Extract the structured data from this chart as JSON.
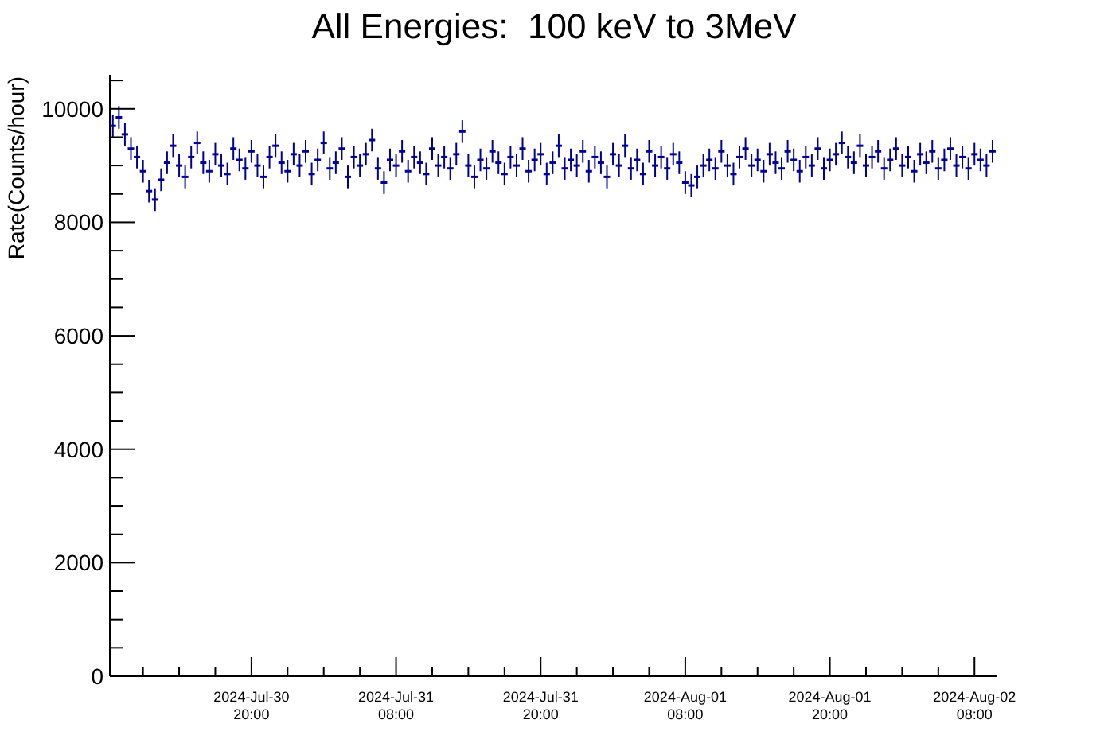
{
  "chart_data": {
    "type": "scatter",
    "title": "All Energies:  100 keV to 3MeV",
    "ylabel": "Rate(Counts/hour)",
    "x": [
      "2024-07-30T08:30",
      "2024-07-30T09:00",
      "2024-07-30T09:30",
      "2024-07-30T10:00",
      "2024-07-30T10:30",
      "2024-07-30T11:00",
      "2024-07-30T11:30",
      "2024-07-30T12:00",
      "2024-07-30T12:30",
      "2024-07-30T13:00",
      "2024-07-30T13:30",
      "2024-07-30T14:00",
      "2024-07-30T14:30",
      "2024-07-30T15:00",
      "2024-07-30T15:30",
      "2024-07-30T16:00",
      "2024-07-30T16:30",
      "2024-07-30T17:00",
      "2024-07-30T17:30",
      "2024-07-30T18:00",
      "2024-07-30T18:30",
      "2024-07-30T19:00",
      "2024-07-30T19:30",
      "2024-07-30T20:00",
      "2024-07-30T20:30",
      "2024-07-30T21:00",
      "2024-07-30T21:30",
      "2024-07-30T22:00",
      "2024-07-30T22:30",
      "2024-07-30T23:00",
      "2024-07-30T23:30",
      "2024-07-31T00:00",
      "2024-07-31T00:30",
      "2024-07-31T01:00",
      "2024-07-31T01:30",
      "2024-07-31T02:00",
      "2024-07-31T02:30",
      "2024-07-31T03:00",
      "2024-07-31T03:30",
      "2024-07-31T04:00",
      "2024-07-31T04:30",
      "2024-07-31T05:00",
      "2024-07-31T05:30",
      "2024-07-31T06:00",
      "2024-07-31T06:30",
      "2024-07-31T07:00",
      "2024-07-31T07:30",
      "2024-07-31T08:00",
      "2024-07-31T08:30",
      "2024-07-31T09:00",
      "2024-07-31T09:30",
      "2024-07-31T10:00",
      "2024-07-31T10:30",
      "2024-07-31T11:00",
      "2024-07-31T11:30",
      "2024-07-31T12:00",
      "2024-07-31T12:30",
      "2024-07-31T13:00",
      "2024-07-31T13:30",
      "2024-07-31T14:00",
      "2024-07-31T14:30",
      "2024-07-31T15:00",
      "2024-07-31T15:30",
      "2024-07-31T16:00",
      "2024-07-31T16:30",
      "2024-07-31T17:00",
      "2024-07-31T17:30",
      "2024-07-31T18:00",
      "2024-07-31T18:30",
      "2024-07-31T19:00",
      "2024-07-31T19:30",
      "2024-07-31T20:00",
      "2024-07-31T20:30",
      "2024-07-31T21:00",
      "2024-07-31T21:30",
      "2024-07-31T22:00",
      "2024-07-31T22:30",
      "2024-07-31T23:00",
      "2024-07-31T23:30",
      "2024-08-01T00:00",
      "2024-08-01T00:30",
      "2024-08-01T01:00",
      "2024-08-01T01:30",
      "2024-08-01T02:00",
      "2024-08-01T02:30",
      "2024-08-01T03:00",
      "2024-08-01T03:30",
      "2024-08-01T04:00",
      "2024-08-01T04:30",
      "2024-08-01T05:00",
      "2024-08-01T05:30",
      "2024-08-01T06:00",
      "2024-08-01T06:30",
      "2024-08-01T07:00",
      "2024-08-01T07:30",
      "2024-08-01T08:00",
      "2024-08-01T08:30",
      "2024-08-01T09:00",
      "2024-08-01T09:30",
      "2024-08-01T10:00",
      "2024-08-01T10:30",
      "2024-08-01T11:00",
      "2024-08-01T11:30",
      "2024-08-01T12:00",
      "2024-08-01T12:30",
      "2024-08-01T13:00",
      "2024-08-01T13:30",
      "2024-08-01T14:00",
      "2024-08-01T14:30",
      "2024-08-01T15:00",
      "2024-08-01T15:30",
      "2024-08-01T16:00",
      "2024-08-01T16:30",
      "2024-08-01T17:00",
      "2024-08-01T17:30",
      "2024-08-01T18:00",
      "2024-08-01T18:30",
      "2024-08-01T19:00",
      "2024-08-01T19:30",
      "2024-08-01T20:00",
      "2024-08-01T20:30",
      "2024-08-01T21:00",
      "2024-08-01T21:30",
      "2024-08-01T22:00",
      "2024-08-01T22:30",
      "2024-08-01T23:00",
      "2024-08-01T23:30",
      "2024-08-02T00:00",
      "2024-08-02T00:30",
      "2024-08-02T01:00",
      "2024-08-02T01:30",
      "2024-08-02T02:00",
      "2024-08-02T02:30",
      "2024-08-02T03:00",
      "2024-08-02T03:30",
      "2024-08-02T04:00",
      "2024-08-02T04:30",
      "2024-08-02T05:00",
      "2024-08-02T05:30",
      "2024-08-02T06:00",
      "2024-08-02T06:30",
      "2024-08-02T07:00",
      "2024-08-02T07:30",
      "2024-08-02T08:00",
      "2024-08-02T08:30",
      "2024-08-02T09:00",
      "2024-08-02T09:30"
    ],
    "series": [
      {
        "color": "#000099",
        "values": [
          9700,
          9850,
          9550,
          9300,
          9150,
          8900,
          8550,
          8400,
          8750,
          9050,
          9350,
          9000,
          8800,
          9150,
          9400,
          9050,
          8900,
          9200,
          9000,
          8850,
          9300,
          9100,
          8950,
          9250,
          9000,
          8800,
          9150,
          9350,
          9050,
          8900,
          9200,
          9000,
          9250,
          8850,
          9100,
          9400,
          8950,
          9050,
          9300,
          8800,
          9150,
          9000,
          9200,
          9450,
          8950,
          8700,
          9100,
          9000,
          9250,
          8900,
          9150,
          9050,
          8850,
          9300,
          9000,
          9150,
          8950,
          9200,
          9600,
          9000,
          8800,
          9100,
          8950,
          9250,
          9050,
          8850,
          9150,
          9000,
          9300,
          8900,
          9100,
          9200,
          8850,
          9050,
          9350,
          8950,
          9100,
          9000,
          9250,
          8900,
          9150,
          9050,
          8800,
          9200,
          9000,
          9350,
          8950,
          9100,
          8850,
          9250,
          9000,
          9150,
          8950,
          9200,
          9050,
          8700,
          8650,
          8800,
          9000,
          9100,
          8950,
          9250,
          9000,
          8850,
          9150,
          9300,
          9000,
          9100,
          8900,
          9200,
          9050,
          8950,
          9250,
          9100,
          8900,
          9150,
          9000,
          9300,
          8950,
          9100,
          9200,
          9400,
          9150,
          9050,
          9350,
          9000,
          9150,
          9250,
          8950,
          9100,
          9300,
          9000,
          9150,
          8900,
          9200,
          9050,
          9250,
          8950,
          9100,
          9300,
          9000,
          9150,
          8950,
          9200,
          9100,
          9000,
          9250
        ],
        "errors": [
          200,
          200,
          200,
          200,
          200,
          200,
          200,
          200,
          200,
          200,
          200,
          200,
          200,
          200,
          200,
          200,
          200,
          200,
          200,
          200,
          200,
          200,
          200,
          200,
          200,
          200,
          200,
          200,
          200,
          200,
          200,
          200,
          200,
          200,
          200,
          200,
          200,
          200,
          200,
          200,
          200,
          200,
          200,
          200,
          200,
          200,
          200,
          200,
          200,
          200,
          200,
          200,
          200,
          200,
          200,
          200,
          200,
          200,
          200,
          200,
          200,
          200,
          200,
          200,
          200,
          200,
          200,
          200,
          200,
          200,
          200,
          200,
          200,
          200,
          200,
          200,
          200,
          200,
          200,
          200,
          200,
          200,
          200,
          200,
          200,
          200,
          200,
          200,
          200,
          200,
          200,
          200,
          200,
          200,
          200,
          200,
          200,
          200,
          200,
          200,
          200,
          200,
          200,
          200,
          200,
          200,
          200,
          200,
          200,
          200,
          200,
          200,
          200,
          200,
          200,
          200,
          200,
          200,
          200,
          200,
          200,
          200,
          200,
          200,
          200,
          200,
          200,
          200,
          200,
          200,
          200,
          200,
          200,
          200,
          200,
          200,
          200,
          200,
          200,
          200,
          200,
          200,
          200,
          200,
          200,
          200,
          200
        ]
      }
    ],
    "xlim": [
      "2024-07-30T08:15",
      "2024-08-02T09:50"
    ],
    "xticks": [
      {
        "value": "2024-07-30T11:00",
        "label": null
      },
      {
        "value": "2024-07-30T14:00",
        "label": null
      },
      {
        "value": "2024-07-30T17:00",
        "label": null
      },
      {
        "value": "2024-07-30T20:00",
        "label": "2024-Jul-30\n20:00"
      },
      {
        "value": "2024-07-30T23:00",
        "label": null
      },
      {
        "value": "2024-07-31T02:00",
        "label": null
      },
      {
        "value": "2024-07-31T05:00",
        "label": null
      },
      {
        "value": "2024-07-31T08:00",
        "label": "2024-Jul-31\n08:00"
      },
      {
        "value": "2024-07-31T11:00",
        "label": null
      },
      {
        "value": "2024-07-31T14:00",
        "label": null
      },
      {
        "value": "2024-07-31T17:00",
        "label": null
      },
      {
        "value": "2024-07-31T20:00",
        "label": "2024-Jul-31\n20:00"
      },
      {
        "value": "2024-07-31T23:00",
        "label": null
      },
      {
        "value": "2024-08-01T02:00",
        "label": null
      },
      {
        "value": "2024-08-01T05:00",
        "label": null
      },
      {
        "value": "2024-08-01T08:00",
        "label": "2024-Aug-01\n08:00"
      },
      {
        "value": "2024-08-01T11:00",
        "label": null
      },
      {
        "value": "2024-08-01T14:00",
        "label": null
      },
      {
        "value": "2024-08-01T17:00",
        "label": null
      },
      {
        "value": "2024-08-01T20:00",
        "label": "2024-Aug-01\n20:00"
      },
      {
        "value": "2024-08-01T23:00",
        "label": null
      },
      {
        "value": "2024-08-02T02:00",
        "label": null
      },
      {
        "value": "2024-08-02T05:00",
        "label": null
      },
      {
        "value": "2024-08-02T08:00",
        "label": "2024-Aug-02\n08:00"
      }
    ],
    "ylim": [
      0,
      10600
    ],
    "yticks": [
      0,
      {
        "value": 500,
        "label": null
      },
      {
        "value": 1000,
        "label": null
      },
      {
        "value": 1500,
        "label": null
      },
      2000,
      {
        "value": 2500,
        "label": null
      },
      {
        "value": 3000,
        "label": null
      },
      {
        "value": 3500,
        "label": null
      },
      4000,
      {
        "value": 4500,
        "label": null
      },
      {
        "value": 5000,
        "label": null
      },
      {
        "value": 5500,
        "label": null
      },
      6000,
      {
        "value": 6500,
        "label": null
      },
      {
        "value": 7000,
        "label": null
      },
      {
        "value": 7500,
        "label": null
      },
      8000,
      {
        "value": 8500,
        "label": null
      },
      {
        "value": 9000,
        "label": null
      },
      {
        "value": 9500,
        "label": null
      },
      10000,
      {
        "value": 10500,
        "label": null
      }
    ],
    "grid": false,
    "legend": false
  }
}
